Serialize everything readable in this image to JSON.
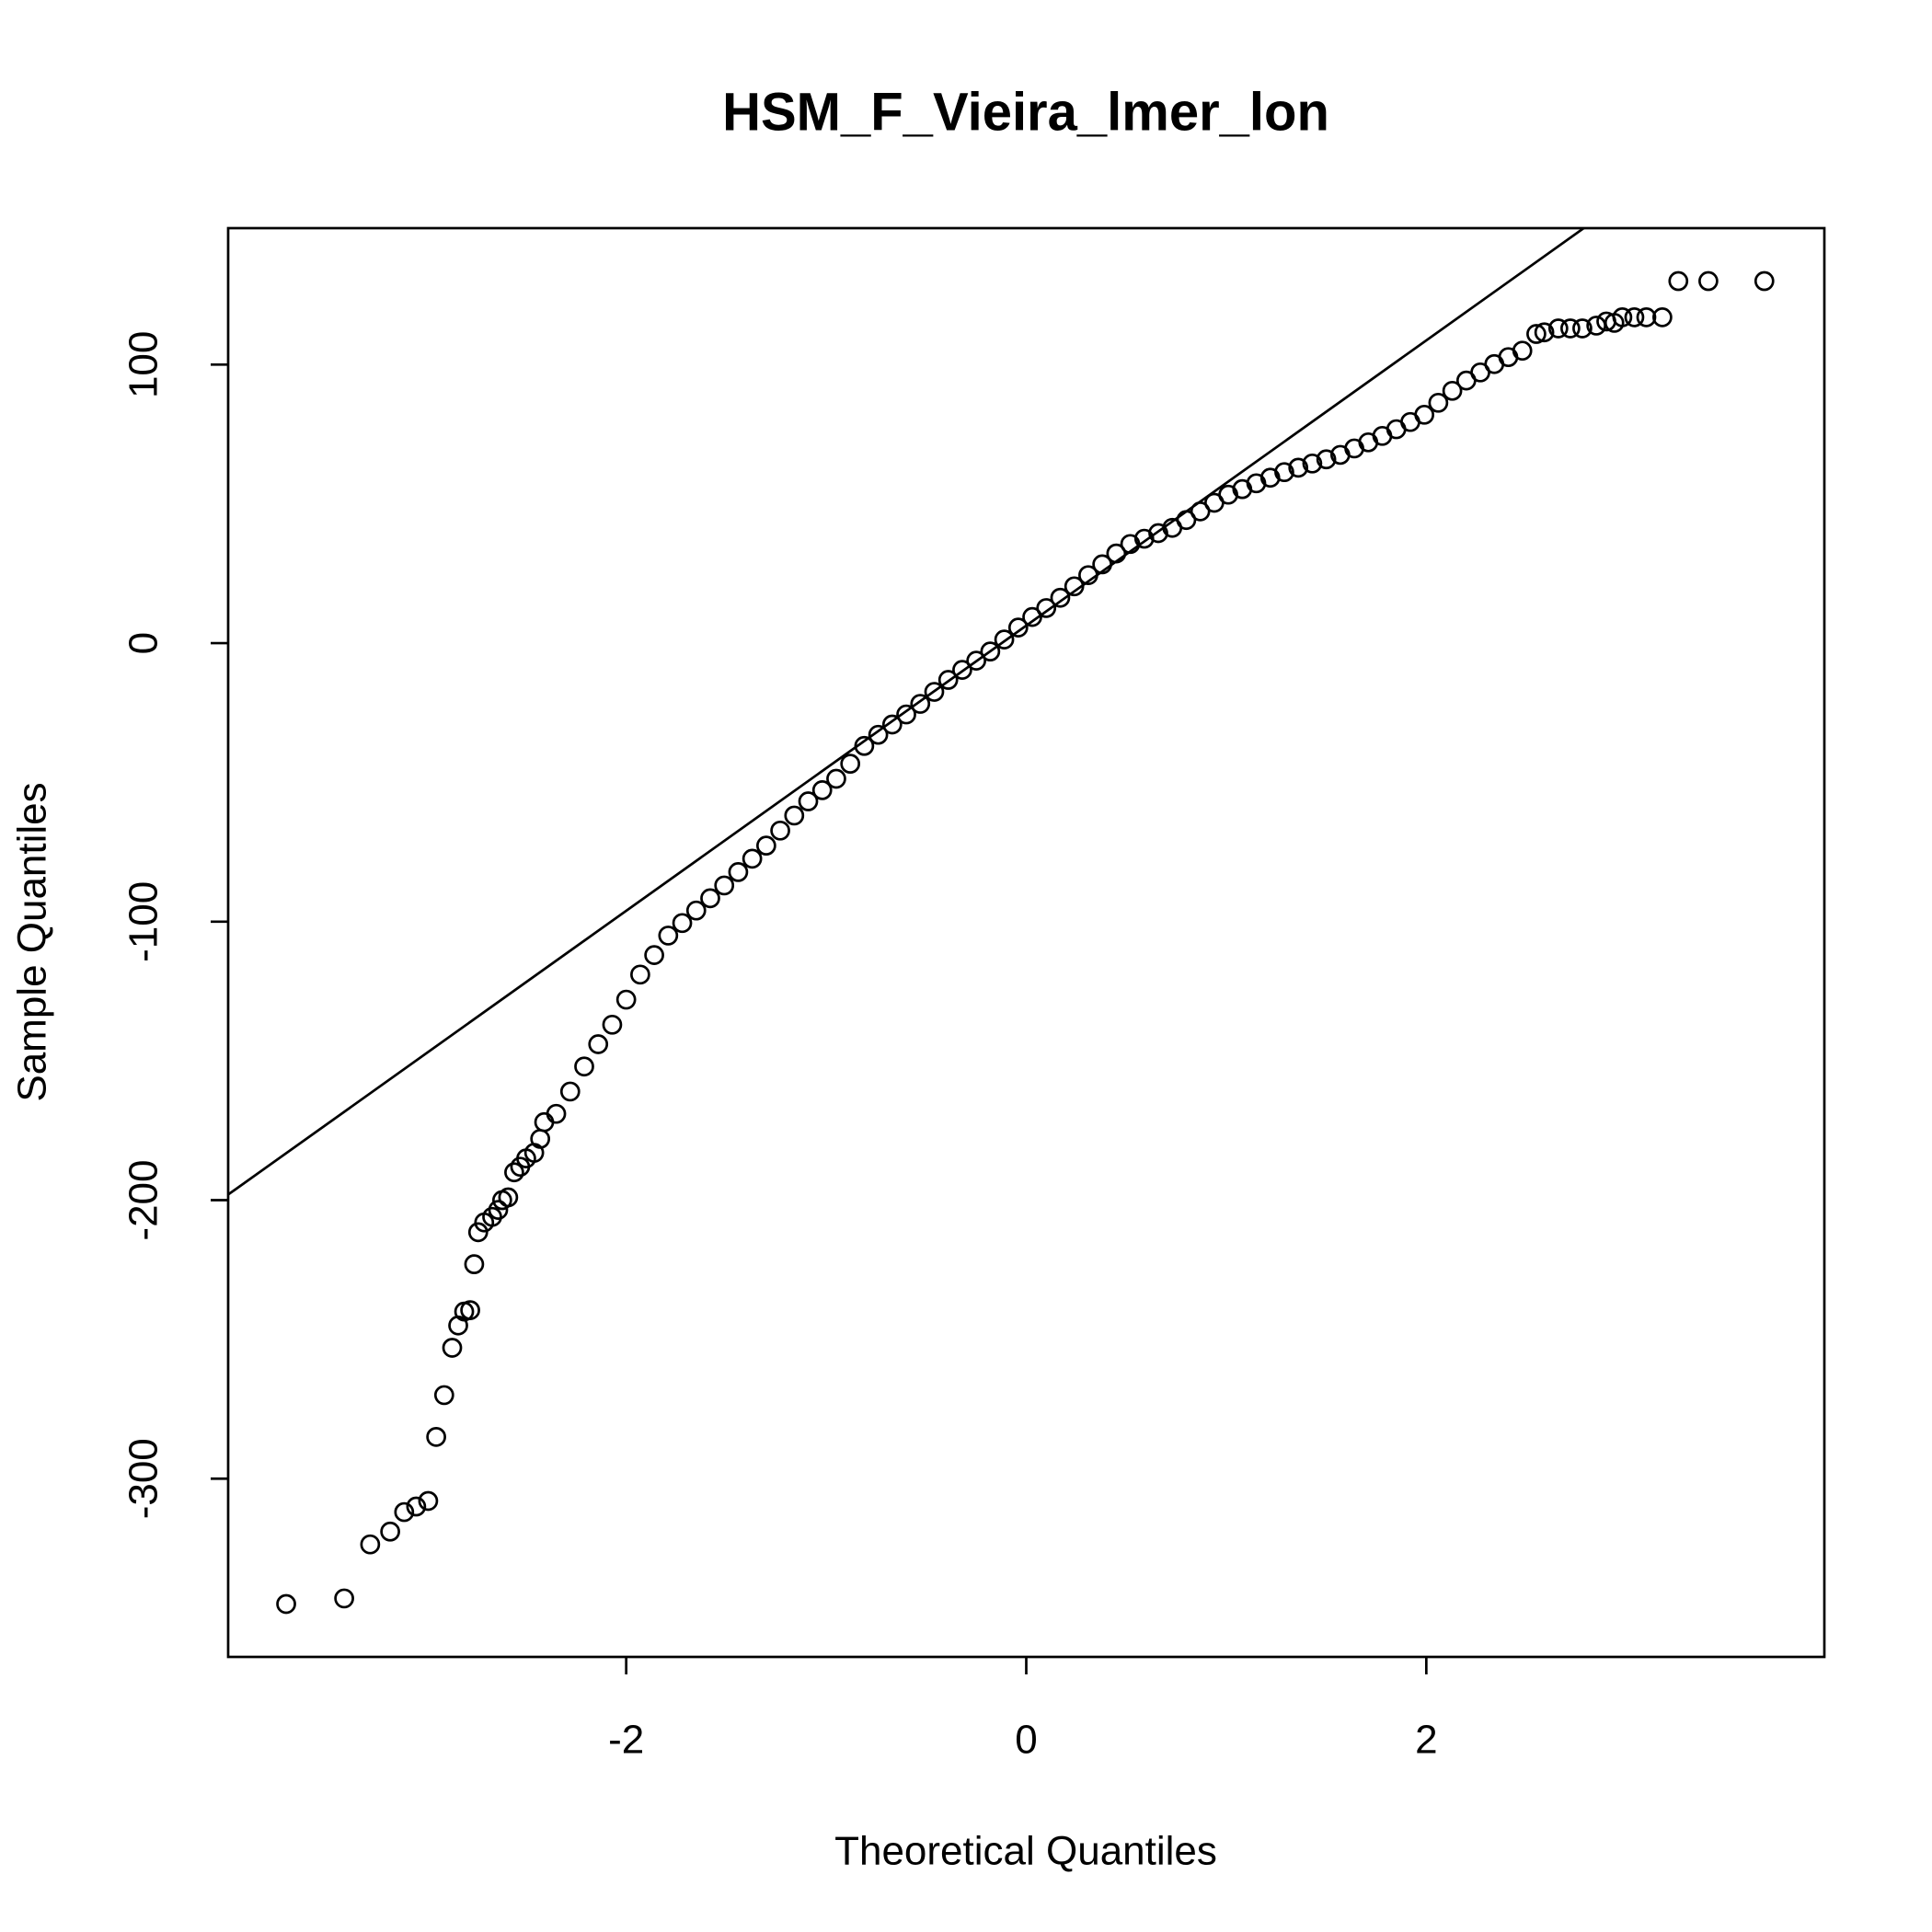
{
  "chart_data": {
    "type": "scatter",
    "title": "HSM_F_Vieira_lmer_lon",
    "x_label": "Theoretical Quantiles",
    "y_label": "Sample Quantiles",
    "xlim": [
      -3.99,
      3.99
    ],
    "ylim": [
      -364,
      149
    ],
    "xticks": [
      -2,
      0,
      2
    ],
    "yticks": [
      -300,
      -200,
      -100,
      0,
      100
    ],
    "color": "#000000",
    "reference_line": {
      "intercept": 6.3,
      "slope": 51.2
    },
    "x": [
      -3.7,
      -3.41,
      -3.28,
      -3.18,
      -3.11,
      -3.05,
      -2.99,
      -2.95,
      -2.91,
      -2.87,
      -2.84,
      -2.81,
      -2.78,
      -2.76,
      -2.74,
      -2.71,
      -2.67,
      -2.64,
      -2.62,
      -2.59,
      -2.56,
      -2.53,
      -2.5,
      -2.46,
      -2.43,
      -2.41,
      -2.35,
      -2.28,
      -2.21,
      -2.14,
      -2.07,
      -2.0,
      -1.93,
      -1.86,
      -1.79,
      -1.72,
      -1.65,
      -1.58,
      -1.51,
      -1.44,
      -1.37,
      -1.3,
      -1.23,
      -1.16,
      -1.09,
      -1.02,
      -0.95,
      -0.88,
      -0.81,
      -0.74,
      -0.67,
      -0.6,
      -0.53,
      -0.46,
      -0.39,
      -0.32,
      -0.25,
      -0.18,
      -0.11,
      -0.04,
      0.03,
      0.1,
      0.17,
      0.24,
      0.31,
      0.38,
      0.45,
      0.52,
      0.59,
      0.66,
      0.73,
      0.8,
      0.87,
      0.94,
      1.01,
      1.08,
      1.15,
      1.22,
      1.29,
      1.36,
      1.43,
      1.5,
      1.57,
      1.64,
      1.71,
      1.78,
      1.85,
      1.92,
      1.99,
      2.06,
      2.13,
      2.2,
      2.27,
      2.34,
      2.41,
      2.48,
      2.55,
      2.59,
      2.66,
      2.72,
      2.78,
      2.85,
      2.9,
      2.94,
      2.98,
      3.04,
      3.1,
      3.18,
      3.26,
      3.41,
      3.69
    ],
    "values": [
      -345,
      -343,
      -323.6,
      -319,
      -312,
      -310,
      -308,
      -285,
      -270,
      -253,
      -245,
      -240,
      -239.5,
      -223,
      -211.5,
      -208,
      -206,
      -203.5,
      -200,
      -199,
      -190,
      -188,
      -185,
      -183,
      -178,
      -172,
      -169,
      -161,
      -152,
      -144,
      -137,
      -128,
      -119,
      -112,
      -105,
      -100.5,
      -96,
      -91.6,
      -87,
      -82.2,
      -77.4,
      -72.7,
      -67.3,
      -61.9,
      -56.8,
      -52.8,
      -48.7,
      -43.3,
      -36.9,
      -32.9,
      -29.2,
      -25.6,
      -21.8,
      -17.5,
      -13.2,
      -9.6,
      -6.3,
      -3,
      1.3,
      5.6,
      9.4,
      12.6,
      16.3,
      20.4,
      24.4,
      28.3,
      32.2,
      35.6,
      37.5,
      39.5,
      41.4,
      44.2,
      47.3,
      50.4,
      53.3,
      55.3,
      57.4,
      59.4,
      61.4,
      63,
      64.5,
      66,
      67.6,
      69.9,
      72.1,
      74.4,
      76.8,
      79.4,
      82,
      86.3,
      90.6,
      94.3,
      97.2,
      100.2,
      102.7,
      105,
      111,
      111.6,
      113,
      113,
      113,
      114,
      115.5,
      115,
      117,
      117,
      117,
      117,
      130,
      130,
      130
    ]
  }
}
